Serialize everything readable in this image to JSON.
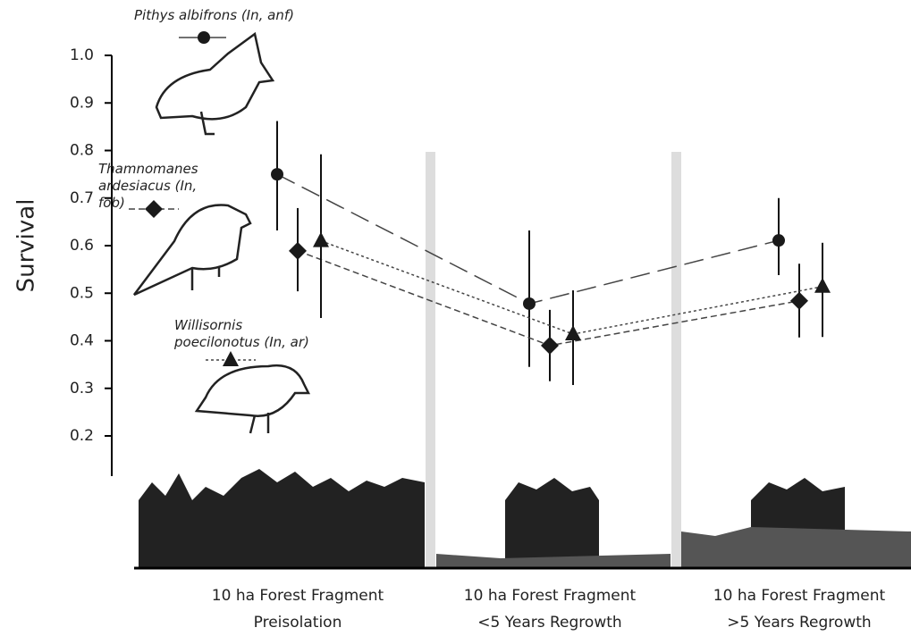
{
  "chart_data": {
    "type": "errorbar",
    "y_label": "Survival",
    "categories": [
      "10 ha Forest Fragment\nPreisolation",
      "10 ha Forest Fragment\n<5 Years Regrowth",
      "10 ha Forest Fragment\n>5 Years Regrowth"
    ],
    "ylim": [
      0.12,
      1.0
    ],
    "yticks": [
      0.2,
      0.3,
      0.4,
      0.5,
      0.6,
      0.7,
      0.8,
      0.9,
      {
        "value": 1,
        "label": "1.0"
      }
    ],
    "series": [
      {
        "name": "Pithys albifrons (In, anf)",
        "marker": "circle",
        "color": "#1a1a1a",
        "values": [
          0.75,
          0.478,
          0.611
        ],
        "lower": [
          0.632,
          0.345,
          0.538
        ],
        "upper": [
          0.862,
          0.632,
          0.7
        ]
      },
      {
        "name": "Thamnomanes ardesiacus (In, fob)",
        "marker": "diamond",
        "color": "#1a1a1a",
        "values": [
          0.589,
          0.39,
          0.484
        ],
        "lower": [
          0.504,
          0.315,
          0.407
        ],
        "upper": [
          0.679,
          0.465,
          0.562
        ]
      },
      {
        "name": "Willisornis poecilonotus (In, ar)",
        "marker": "triangle",
        "color": "#1a1a1a",
        "values": [
          0.61,
          0.414,
          0.514
        ],
        "lower": [
          0.448,
          0.307,
          0.408
        ],
        "upper": [
          0.792,
          0.506,
          0.606
        ]
      }
    ]
  }
}
